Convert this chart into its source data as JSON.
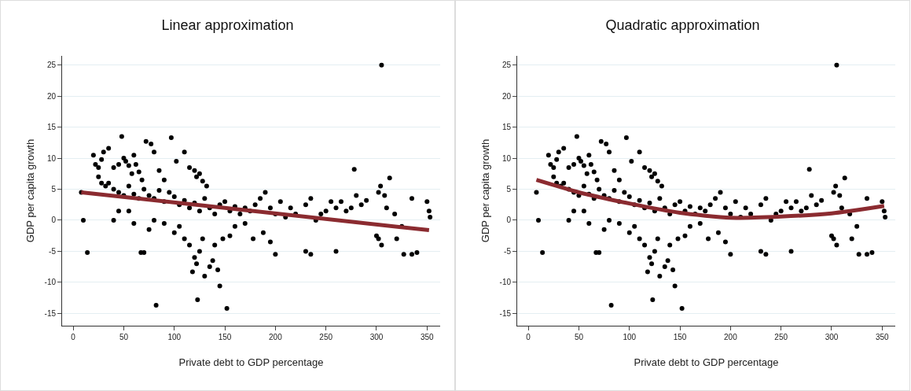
{
  "chart_data": [
    {
      "type": "scatter",
      "title": "Linear approximation",
      "xlabel": "Private debt to GDP percentage",
      "ylabel": "GDP per capita growth",
      "xlim": [
        -11,
        363
      ],
      "ylim": [
        -17,
        26.5
      ],
      "xticks": [
        0,
        50,
        100,
        150,
        200,
        250,
        300,
        350
      ],
      "yticks": [
        -15,
        -10,
        -5,
        0,
        5,
        10,
        15,
        20,
        25
      ],
      "grid": "y",
      "marker": "circle",
      "series": [
        {
          "color": "#000000",
          "x": [
            305,
            82,
            152,
            123,
            10,
            14,
            67,
            70,
            8,
            20,
            22,
            25,
            28,
            30,
            35,
            25,
            28,
            32,
            40,
            45,
            48,
            50,
            52,
            55,
            58,
            60,
            62,
            65,
            68,
            72,
            77,
            80,
            85,
            90,
            97,
            102,
            110,
            115,
            120,
            122,
            125,
            128,
            132,
            35,
            40,
            45,
            50,
            55,
            60,
            65,
            70,
            75,
            80,
            85,
            90,
            95,
            100,
            105,
            110,
            115,
            120,
            125,
            130,
            135,
            140,
            145,
            150,
            155,
            160,
            165,
            170,
            175,
            180,
            185,
            190,
            195,
            200,
            205,
            210,
            215,
            220,
            230,
            235,
            240,
            245,
            250,
            255,
            260,
            265,
            270,
            275,
            278,
            280,
            285,
            290,
            302,
            304,
            308,
            310,
            313,
            318,
            325,
            335,
            350,
            352,
            353,
            40,
            45,
            55,
            60,
            75,
            80,
            90,
            100,
            105,
            110,
            115,
            118,
            120,
            122,
            125,
            128,
            130,
            135,
            138,
            140,
            143,
            145,
            148,
            155,
            160,
            170,
            178,
            188,
            195,
            200,
            230,
            235,
            260,
            300,
            302,
            305,
            320,
            327,
            335,
            340
          ],
          "values": [
            25,
            -13.7,
            -14.2,
            -12.8,
            0,
            -5.2,
            -5.2,
            -5.2,
            4.5,
            10.5,
            9,
            8.5,
            9.8,
            11,
            11.6,
            7,
            6,
            5.5,
            8.5,
            9,
            13.5,
            10,
            9.5,
            8.8,
            7.5,
            10.5,
            9,
            7.8,
            6.5,
            12.7,
            12.3,
            11,
            8,
            6.5,
            13.3,
            9.5,
            11,
            8.5,
            8,
            7,
            7.5,
            6.3,
            5.5,
            6,
            5,
            4.5,
            4,
            5.5,
            4.2,
            3.5,
            5,
            4,
            3.5,
            4.8,
            3,
            4.5,
            3.8,
            2.5,
            3.2,
            2,
            2.8,
            1.5,
            3.5,
            2,
            1,
            2.5,
            3,
            1.5,
            2.2,
            1,
            2,
            1.5,
            2.5,
            3.5,
            4.5,
            2,
            1,
            3,
            0.5,
            2,
            1,
            2.5,
            3.5,
            0,
            1,
            1.5,
            3,
            2,
            3,
            1.5,
            2,
            8.2,
            4,
            2.5,
            3.2,
            4.5,
            5.5,
            4,
            2,
            6.8,
            1,
            -1,
            3.5,
            3,
            1.5,
            0.5,
            0,
            1.5,
            1.5,
            -0.5,
            -1.5,
            0,
            -0.5,
            -2,
            -1,
            -3,
            -4,
            -8.3,
            -6,
            -7,
            -5,
            -3,
            -9,
            -7.5,
            -6.5,
            -4,
            -8,
            -10.6,
            -3,
            -2.5,
            -1,
            -0.5,
            -3,
            -2,
            -3.5,
            -5.5,
            -5,
            -5.5,
            -5,
            -2.5,
            -3,
            -4,
            -3,
            -5.5,
            -5.5,
            -5.2
          ]
        },
        {
          "type": "line",
          "color": "#8b2b30",
          "marker": "none",
          "x": [
            8,
            352
          ],
          "values": [
            4.5,
            -1.6
          ]
        }
      ]
    },
    {
      "type": "scatter",
      "title": "Quadratic approximation",
      "xlabel": "Private debt to GDP percentage",
      "ylabel": "GDP per capita growth",
      "xlim": [
        -11,
        363
      ],
      "ylim": [
        -17,
        26.5
      ],
      "xticks": [
        0,
        50,
        100,
        150,
        200,
        250,
        300,
        350
      ],
      "yticks": [
        -15,
        -10,
        -5,
        0,
        5,
        10,
        15,
        20,
        25
      ],
      "grid": "y",
      "marker": "circle",
      "series": [
        {
          "color": "#000000",
          "x": [
            305,
            82,
            152,
            123,
            10,
            14,
            67,
            70,
            8,
            20,
            22,
            25,
            28,
            30,
            35,
            25,
            28,
            32,
            40,
            45,
            48,
            50,
            52,
            55,
            58,
            60,
            62,
            65,
            68,
            72,
            77,
            80,
            85,
            90,
            97,
            102,
            110,
            115,
            120,
            122,
            125,
            128,
            132,
            35,
            40,
            45,
            50,
            55,
            60,
            65,
            70,
            75,
            80,
            85,
            90,
            95,
            100,
            105,
            110,
            115,
            120,
            125,
            130,
            135,
            140,
            145,
            150,
            155,
            160,
            165,
            170,
            175,
            180,
            185,
            190,
            195,
            200,
            205,
            210,
            215,
            220,
            230,
            235,
            240,
            245,
            250,
            255,
            260,
            265,
            270,
            275,
            278,
            280,
            285,
            290,
            302,
            304,
            308,
            310,
            313,
            318,
            325,
            335,
            350,
            352,
            353,
            40,
            45,
            55,
            60,
            75,
            80,
            90,
            100,
            105,
            110,
            115,
            118,
            120,
            122,
            125,
            128,
            130,
            135,
            138,
            140,
            143,
            145,
            148,
            155,
            160,
            170,
            178,
            188,
            195,
            200,
            230,
            235,
            260,
            300,
            302,
            305,
            320,
            327,
            335,
            340
          ],
          "values": [
            25,
            -13.7,
            -14.2,
            -12.8,
            0,
            -5.2,
            -5.2,
            -5.2,
            4.5,
            10.5,
            9,
            8.5,
            9.8,
            11,
            11.6,
            7,
            6,
            5.5,
            8.5,
            9,
            13.5,
            10,
            9.5,
            8.8,
            7.5,
            10.5,
            9,
            7.8,
            6.5,
            12.7,
            12.3,
            11,
            8,
            6.5,
            13.3,
            9.5,
            11,
            8.5,
            8,
            7,
            7.5,
            6.3,
            5.5,
            6,
            5,
            4.5,
            4,
            5.5,
            4.2,
            3.5,
            5,
            4,
            3.5,
            4.8,
            3,
            4.5,
            3.8,
            2.5,
            3.2,
            2,
            2.8,
            1.5,
            3.5,
            2,
            1,
            2.5,
            3,
            1.5,
            2.2,
            1,
            2,
            1.5,
            2.5,
            3.5,
            4.5,
            2,
            1,
            3,
            0.5,
            2,
            1,
            2.5,
            3.5,
            0,
            1,
            1.5,
            3,
            2,
            3,
            1.5,
            2,
            8.2,
            4,
            2.5,
            3.2,
            4.5,
            5.5,
            4,
            2,
            6.8,
            1,
            -1,
            3.5,
            3,
            1.5,
            0.5,
            0,
            1.5,
            1.5,
            -0.5,
            -1.5,
            0,
            -0.5,
            -2,
            -1,
            -3,
            -4,
            -8.3,
            -6,
            -7,
            -5,
            -3,
            -9,
            -7.5,
            -6.5,
            -4,
            -8,
            -10.6,
            -3,
            -2.5,
            -1,
            -0.5,
            -3,
            -2,
            -3.5,
            -5.5,
            -5,
            -5.5,
            -5,
            -2.5,
            -3,
            -4,
            -3,
            -5.5,
            -5.5,
            -5.2
          ]
        },
        {
          "type": "line",
          "color": "#8b2b30",
          "marker": "none",
          "x": [
            8,
            50,
            100,
            150,
            200,
            250,
            300,
            352
          ],
          "values": [
            6.5,
            4.5,
            2.7,
            1.2,
            0.4,
            0.6,
            1.1,
            2.3
          ]
        }
      ]
    }
  ]
}
